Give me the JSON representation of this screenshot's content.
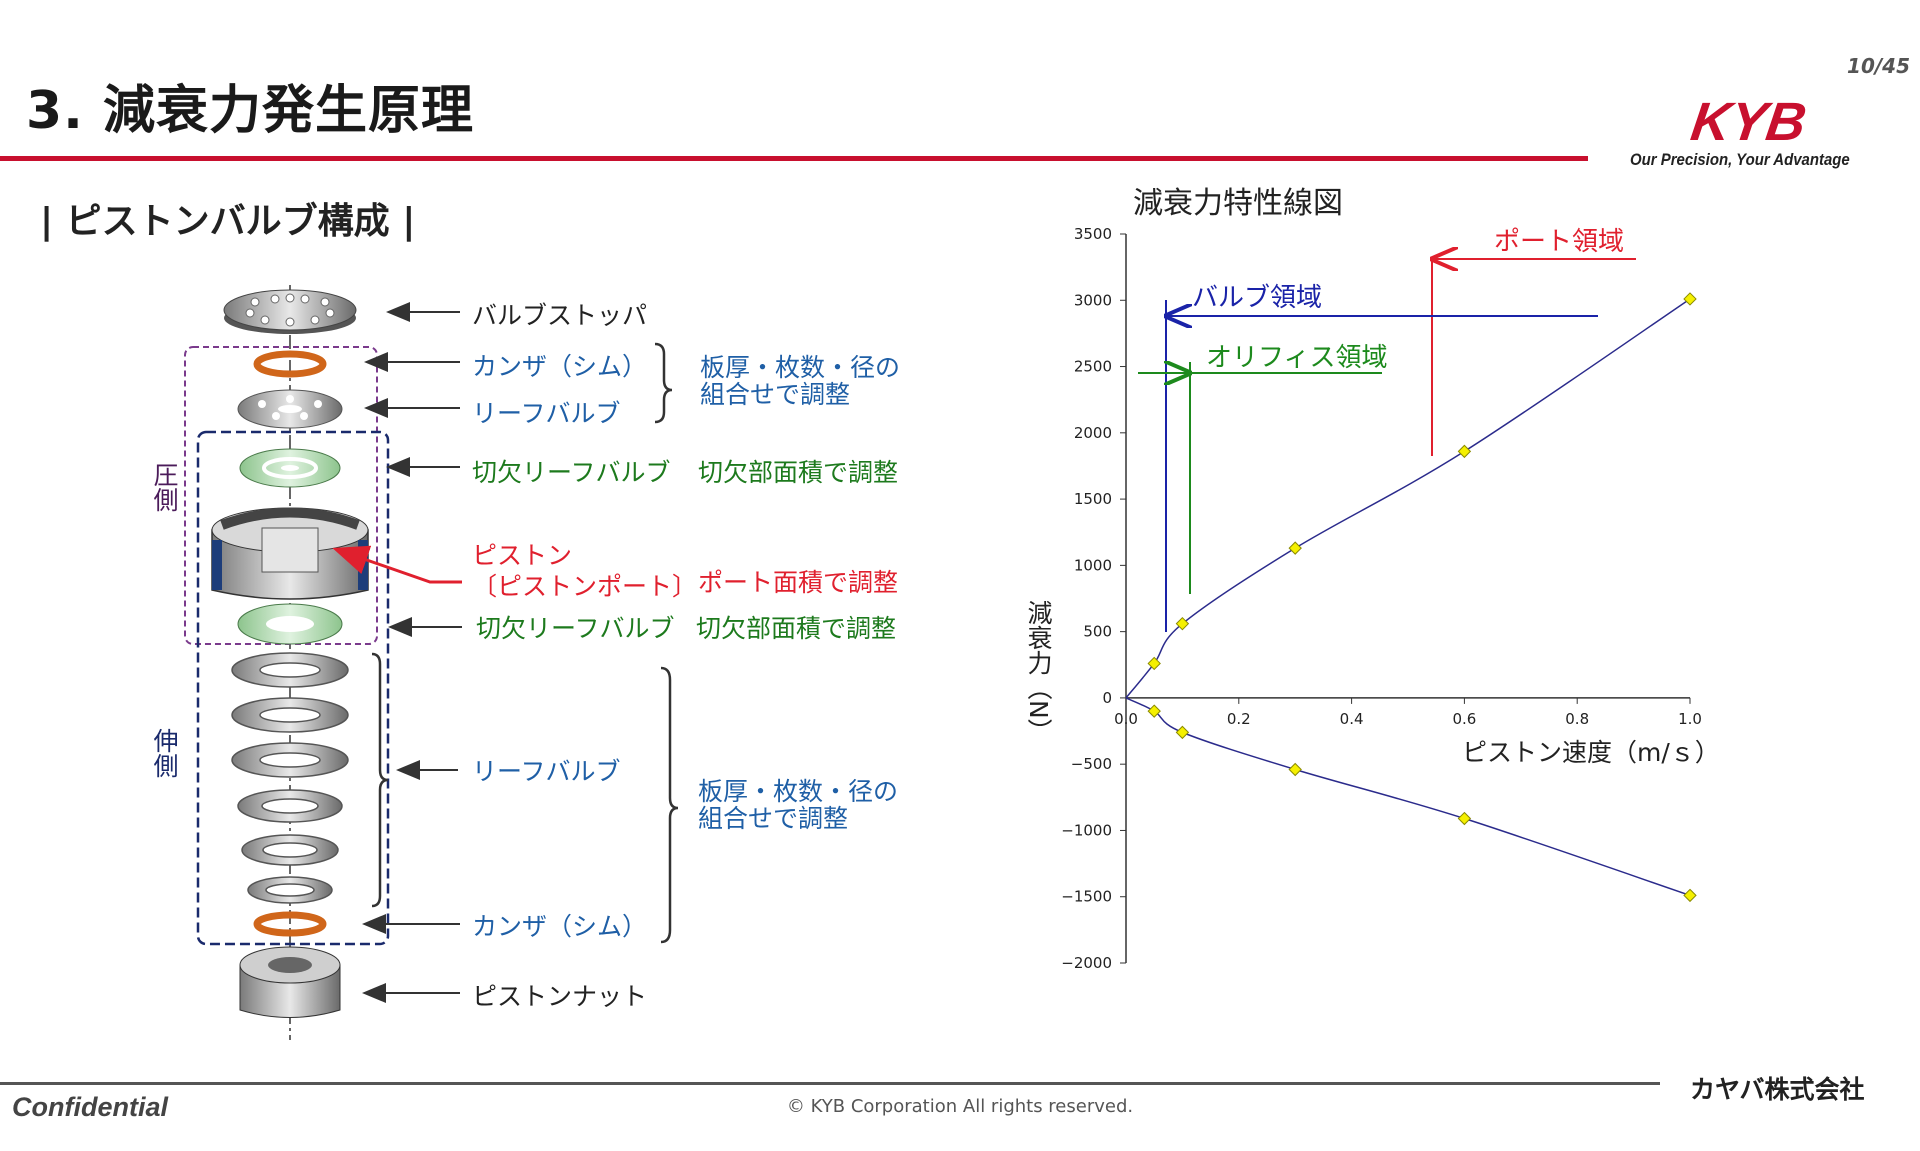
{
  "header": {
    "title": "3. 減衰力発生原理",
    "page_number": "10/45",
    "logo_text": "KYB",
    "tagline": "Our Precision, Your Advantage",
    "brand_color": "#c8102e"
  },
  "section_title": "| ピストンバルブ構成 |",
  "diagram": {
    "side_labels": {
      "compression": "圧側",
      "extension": "伸側"
    },
    "parts": {
      "valve_stopper": "バルブストッパ",
      "shim_top": "カンザ（シム）",
      "leaf_valve_top": "リーフバルブ",
      "notched_leaf_top": "切欠リーフバルブ",
      "piston_line1": "ピストン",
      "piston_line2": "〔ピストンポート〕",
      "notched_leaf_bottom": "切欠リーフバルブ",
      "leaf_valve_bottom": "リーフバルブ",
      "shim_bottom": "カンザ（シム）",
      "piston_nut": "ピストンナット"
    },
    "notes": {
      "adjust_top_line1": "板厚・枚数・径の",
      "adjust_top_line2": "組合せで調整",
      "notch_area_top": "切欠部面積で調整",
      "port_area": "ポート面積で調整",
      "notch_area_bottom": "切欠部面積で調整",
      "adjust_bottom_line1": "板厚・枚数・径の",
      "adjust_bottom_line2": "組合せで調整"
    }
  },
  "chart_data": {
    "type": "line",
    "title": "減衰力特性線図",
    "xlabel": "ピストン速度（m/ｓ）",
    "ylabel": "減衰力（N）",
    "xlim": [
      0,
      1.0
    ],
    "ylim": [
      -2000,
      3500
    ],
    "xticks": [
      "0.0",
      "0.2",
      "0.4",
      "0.6",
      "0.8",
      "1.0"
    ],
    "yticks": [
      "3500",
      "3000",
      "2500",
      "2000",
      "1500",
      "1000",
      "500",
      "0",
      "−500",
      "−1000",
      "−1500",
      "−2000"
    ],
    "series": [
      {
        "x": [
          0.05,
          0.1,
          0.3,
          0.6,
          1.0
        ],
        "values": [
          260,
          560,
          1130,
          1860,
          3010
        ]
      },
      {
        "x": [
          0.05,
          0.1,
          0.3,
          0.6,
          1.0
        ],
        "values": [
          -100,
          -260,
          -540,
          -910,
          -1490
        ]
      }
    ],
    "annotations": {
      "port_region": "ポート領域",
      "valve_region": "バルブ領域",
      "orifice_region": "オリフィス領域"
    },
    "colors": {
      "line": "#2b2b8c",
      "marker": "#f5f000",
      "port": "#e0202e",
      "valve": "#1a23a8",
      "orifice": "#1d8a1d"
    }
  },
  "footer": {
    "confidential": "Confidential",
    "copyright": "© KYB Corporation All rights reserved.",
    "company": "カヤバ株式会社"
  }
}
